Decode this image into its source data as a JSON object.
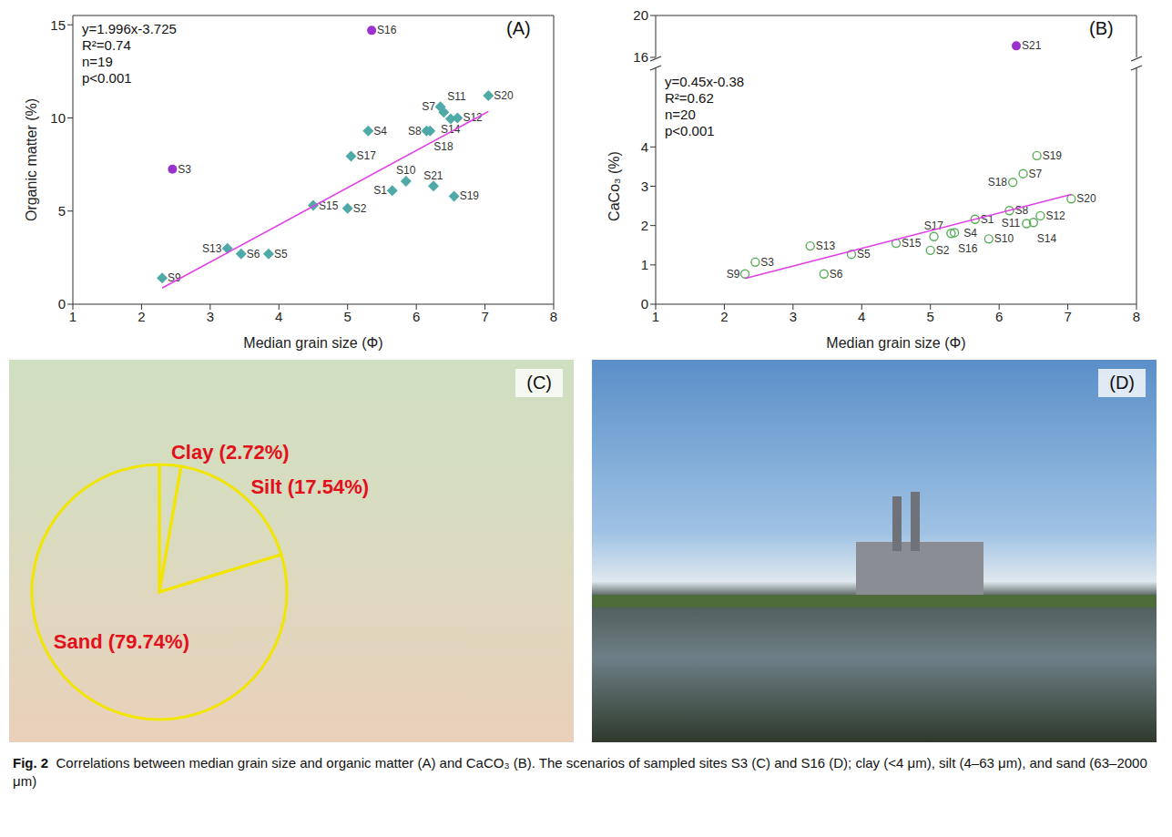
{
  "chart_data": [
    {
      "type": "scatter",
      "label": "(A)",
      "xlabel": "Median grain size (Φ)",
      "ylabel": "Organic matter (%)",
      "xlim": [
        1,
        8
      ],
      "xticks": [
        1,
        2,
        3,
        4,
        5,
        6,
        7,
        8
      ],
      "ylim": [
        0,
        15.5
      ],
      "yticks": [
        0,
        5,
        10,
        15
      ],
      "annotations": [
        "y=1.996x-3.725",
        "R²=0.74",
        "n=19",
        "p<0.001"
      ],
      "series": [
        {
          "marker": "diamond",
          "color": "#4fa9a6",
          "point_labels": [
            "S1",
            "S2",
            "S4",
            "S5",
            "S6",
            "S7",
            "S8",
            "S9",
            "S10",
            "S11",
            "S12",
            "S13",
            "S14",
            "S15",
            "S17",
            "S18",
            "S19",
            "S20",
            "S21"
          ],
          "x": [
            5.65,
            5.0,
            5.3,
            3.85,
            3.45,
            6.35,
            6.15,
            2.3,
            5.85,
            6.4,
            6.6,
            3.25,
            6.5,
            4.5,
            5.05,
            6.2,
            6.55,
            7.05,
            6.25
          ],
          "values": [
            6.1,
            5.15,
            9.3,
            2.7,
            2.7,
            10.6,
            9.3,
            1.4,
            6.6,
            10.3,
            10.0,
            3.0,
            9.95,
            5.3,
            7.95,
            9.3,
            5.8,
            11.2,
            6.35
          ]
        },
        {
          "marker": "circle",
          "color": "#9933cc",
          "point_labels": [
            "S3",
            "S16"
          ],
          "x": [
            2.45,
            5.35
          ],
          "values": [
            7.25,
            14.7
          ]
        },
        {
          "type": "line",
          "color": "#e23ee6",
          "x": [
            2.3,
            7.05
          ],
          "values": [
            0.866,
            10.347
          ]
        }
      ]
    },
    {
      "type": "scatter",
      "label": "(B)",
      "xlim": [
        1,
        8
      ],
      "ylim": [
        16,
        20
      ],
      "yticks": [
        16,
        20
      ],
      "tick_labels": "y",
      "series": [
        {
          "marker": "circle",
          "color": "#9933cc",
          "point_labels": [
            "S21"
          ],
          "x": [
            6.25
          ],
          "values": [
            17.1
          ]
        }
      ]
    },
    {
      "type": "scatter",
      "xlabel": "Median grain size (Φ)",
      "ylabel": "CaCo₃ (%)",
      "xlim": [
        1,
        8
      ],
      "xticks": [
        1,
        2,
        3,
        4,
        5,
        6,
        7,
        8
      ],
      "ylim": [
        0,
        6
      ],
      "yticks": [
        0,
        1,
        2,
        3,
        4
      ],
      "annotations": [
        "y=0.45x-0.38",
        "R²=0.62",
        "n=20",
        "p<0.001"
      ],
      "series": [
        {
          "marker": "open_circle",
          "color": "#5cae5c",
          "point_labels": [
            "S1",
            "S2",
            "S3",
            "S4",
            "S5",
            "S6",
            "S7",
            "S8",
            "S9",
            "S10",
            "S11",
            "S12",
            "S13",
            "S14",
            "S15",
            "S16",
            "S17",
            "S18",
            "S19",
            "S20"
          ],
          "x": [
            5.65,
            5.0,
            2.45,
            5.3,
            3.85,
            3.45,
            6.35,
            6.15,
            2.3,
            5.85,
            6.4,
            6.6,
            3.25,
            6.5,
            4.5,
            5.35,
            5.05,
            6.2,
            6.55,
            7.05
          ],
          "values": [
            2.16,
            1.37,
            1.07,
            1.8,
            1.27,
            0.77,
            3.32,
            2.38,
            0.77,
            1.66,
            2.05,
            2.25,
            1.48,
            2.08,
            1.55,
            1.82,
            1.72,
            3.1,
            3.78,
            2.68
          ]
        },
        {
          "type": "line",
          "color": "#e23ee6",
          "x": [
            2.3,
            7.05
          ],
          "values": [
            0.655,
            2.7925
          ]
        }
      ]
    },
    {
      "type": "pie",
      "label": "(C)",
      "categories": [
        "Clay",
        "Silt",
        "Sand"
      ],
      "values": [
        2.72,
        17.54,
        79.74
      ],
      "value_labels": [
        "(2.72%)",
        "(17.54%)",
        "(79.74%)"
      ],
      "color": "#f2e600",
      "data_labels": true
    }
  ],
  "images": [
    {
      "label": "(D)"
    }
  ],
  "caption_label": "Fig. 2",
  "caption": "Correlations between median grain size and organic matter (A) and CaCO₃ (B). The scenarios of sampled sites S3 (C) and S16 (D); clay (<4 μm), silt (4–63 μm), and sand (63–2000 μm)"
}
